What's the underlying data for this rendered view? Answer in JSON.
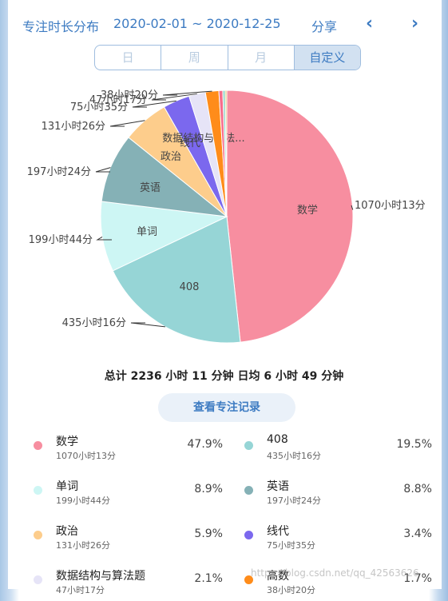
{
  "header": {
    "title": "专注时长分布",
    "date_range": "2020-02-01 ~ 2020-12-25",
    "share_label": "分享",
    "prev_icon": "chevron-left-icon",
    "next_icon": "chevron-right-icon"
  },
  "tabs": [
    {
      "label": "日",
      "active": false
    },
    {
      "label": "周",
      "active": false
    },
    {
      "label": "月",
      "active": false
    },
    {
      "label": "自定义",
      "active": true
    }
  ],
  "chart_data": {
    "type": "pie",
    "slices": [
      {
        "name": "数学",
        "value_label": "1070小时13分",
        "percent": 47.9,
        "color": "#f78ea0"
      },
      {
        "name": "408",
        "value_label": "435小时16分",
        "percent": 19.5,
        "color": "#96d5d6"
      },
      {
        "name": "单词",
        "value_label": "199小时44分",
        "percent": 8.9,
        "color": "#cdf6f4"
      },
      {
        "name": "英语",
        "value_label": "197小时24分",
        "percent": 8.8,
        "color": "#85b1b6"
      },
      {
        "name": "政治",
        "value_label": "131小时26分",
        "percent": 5.9,
        "color": "#fdcd8c"
      },
      {
        "name": "线代",
        "value_label": "75小时35分",
        "percent": 3.4,
        "color": "#7b68ee"
      },
      {
        "name": "数据结构与算法题",
        "inner_label": "数据结构与算法...",
        "value_label": "47小时17分",
        "percent": 2.1,
        "color": "#e6e4f7"
      },
      {
        "name": "高数",
        "value_label": "38小时20分",
        "percent": 1.7,
        "color": "#ff8c1a"
      },
      {
        "name": "",
        "value_label": "",
        "percent": 0.5,
        "color": "#f76d8b"
      },
      {
        "name": "",
        "value_label": "",
        "percent": 0.3,
        "color": "#8ed4c8"
      },
      {
        "name": "",
        "value_label": "",
        "percent": 0.2,
        "color": "#e3c46a"
      }
    ]
  },
  "summary": "总计 2236 小时 11 分钟 日均 6 小时 49 分钟",
  "record_button": "查看专注记录",
  "legend": [
    {
      "name": "数学",
      "time": "1070小时13分",
      "pct": "47.9%",
      "color": "#f78ea0"
    },
    {
      "name": "408",
      "time": "435小时16分",
      "pct": "19.5%",
      "color": "#96d5d6"
    },
    {
      "name": "单词",
      "time": "199小时44分",
      "pct": "8.9%",
      "color": "#cdf6f4"
    },
    {
      "name": "英语",
      "time": "197小时24分",
      "pct": "8.8%",
      "color": "#85b1b6"
    },
    {
      "name": "政治",
      "time": "131小时26分",
      "pct": "5.9%",
      "color": "#fdcd8c"
    },
    {
      "name": "线代",
      "time": "75小时35分",
      "pct": "3.4%",
      "color": "#7b68ee"
    },
    {
      "name": "数据结构与算法题",
      "time": "47小时17分",
      "pct": "2.1%",
      "color": "#e6e4f7"
    },
    {
      "name": "高数",
      "time": "38小时20分",
      "pct": "1.7%",
      "color": "#ff8c1a"
    }
  ],
  "watermark": "https://blog.csdn.net/qq_42563626"
}
